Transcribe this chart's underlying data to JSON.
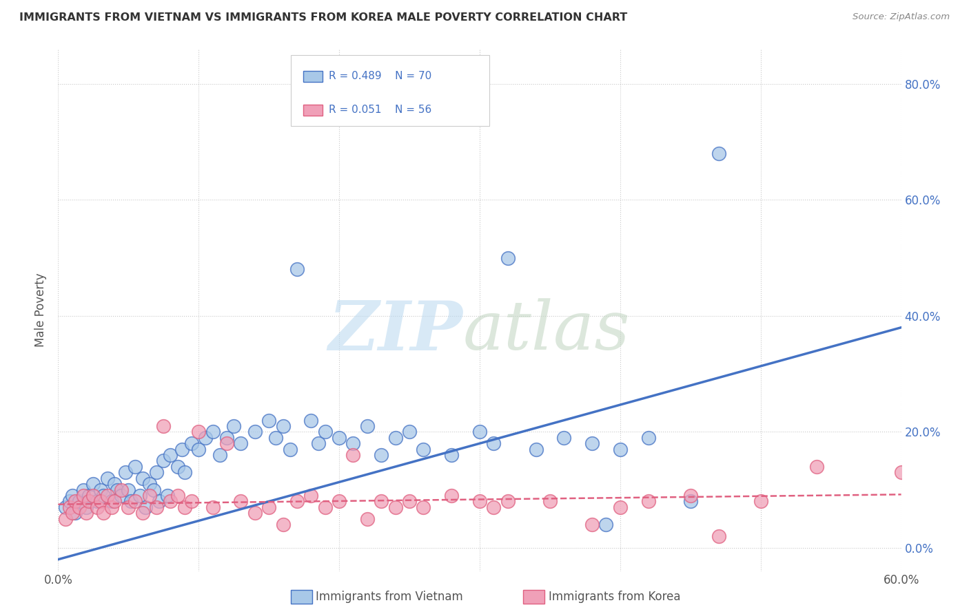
{
  "title": "IMMIGRANTS FROM VIETNAM VS IMMIGRANTS FROM KOREA MALE POVERTY CORRELATION CHART",
  "source": "Source: ZipAtlas.com",
  "ylabel": "Male Poverty",
  "xmin": 0.0,
  "xmax": 0.6,
  "ymin": -0.04,
  "ymax": 0.86,
  "ytick_values": [
    0.0,
    0.2,
    0.4,
    0.6,
    0.8
  ],
  "xtick_values": [
    0.0,
    0.1,
    0.2,
    0.3,
    0.4,
    0.5,
    0.6
  ],
  "legend_label1": "Immigrants from Vietnam",
  "legend_label2": "Immigrants from Korea",
  "legend_R1": "R = 0.489",
  "legend_N1": "N = 70",
  "legend_R2": "R = 0.051",
  "legend_N2": "N = 56",
  "color_vietnam": "#A8C8E8",
  "color_korea": "#F0A0B8",
  "color_line_vietnam": "#4472C4",
  "color_line_korea": "#E06080",
  "vietnam_x": [
    0.005,
    0.008,
    0.01,
    0.012,
    0.015,
    0.018,
    0.02,
    0.022,
    0.025,
    0.028,
    0.03,
    0.032,
    0.035,
    0.038,
    0.04,
    0.042,
    0.045,
    0.048,
    0.05,
    0.052,
    0.055,
    0.058,
    0.06,
    0.062,
    0.065,
    0.068,
    0.07,
    0.072,
    0.075,
    0.078,
    0.08,
    0.085,
    0.088,
    0.09,
    0.095,
    0.1,
    0.105,
    0.11,
    0.115,
    0.12,
    0.125,
    0.13,
    0.14,
    0.15,
    0.155,
    0.16,
    0.165,
    0.17,
    0.18,
    0.185,
    0.19,
    0.2,
    0.21,
    0.22,
    0.23,
    0.24,
    0.25,
    0.26,
    0.28,
    0.3,
    0.31,
    0.32,
    0.34,
    0.36,
    0.38,
    0.39,
    0.4,
    0.42,
    0.45,
    0.47
  ],
  "vietnam_y": [
    0.07,
    0.08,
    0.09,
    0.06,
    0.08,
    0.1,
    0.07,
    0.09,
    0.11,
    0.08,
    0.1,
    0.09,
    0.12,
    0.08,
    0.11,
    0.1,
    0.09,
    0.13,
    0.1,
    0.08,
    0.14,
    0.09,
    0.12,
    0.07,
    0.11,
    0.1,
    0.13,
    0.08,
    0.15,
    0.09,
    0.16,
    0.14,
    0.17,
    0.13,
    0.18,
    0.17,
    0.19,
    0.2,
    0.16,
    0.19,
    0.21,
    0.18,
    0.2,
    0.22,
    0.19,
    0.21,
    0.17,
    0.48,
    0.22,
    0.18,
    0.2,
    0.19,
    0.18,
    0.21,
    0.16,
    0.19,
    0.2,
    0.17,
    0.16,
    0.2,
    0.18,
    0.5,
    0.17,
    0.19,
    0.18,
    0.04,
    0.17,
    0.19,
    0.08,
    0.68
  ],
  "korea_x": [
    0.005,
    0.008,
    0.01,
    0.012,
    0.015,
    0.018,
    0.02,
    0.022,
    0.025,
    0.028,
    0.03,
    0.032,
    0.035,
    0.038,
    0.04,
    0.045,
    0.05,
    0.055,
    0.06,
    0.065,
    0.07,
    0.075,
    0.08,
    0.085,
    0.09,
    0.095,
    0.1,
    0.11,
    0.12,
    0.13,
    0.14,
    0.15,
    0.16,
    0.17,
    0.18,
    0.19,
    0.2,
    0.21,
    0.22,
    0.23,
    0.24,
    0.25,
    0.26,
    0.28,
    0.3,
    0.31,
    0.32,
    0.35,
    0.38,
    0.4,
    0.42,
    0.45,
    0.47,
    0.5,
    0.54,
    0.6
  ],
  "korea_y": [
    0.05,
    0.07,
    0.06,
    0.08,
    0.07,
    0.09,
    0.06,
    0.08,
    0.09,
    0.07,
    0.08,
    0.06,
    0.09,
    0.07,
    0.08,
    0.1,
    0.07,
    0.08,
    0.06,
    0.09,
    0.07,
    0.21,
    0.08,
    0.09,
    0.07,
    0.08,
    0.2,
    0.07,
    0.18,
    0.08,
    0.06,
    0.07,
    0.04,
    0.08,
    0.09,
    0.07,
    0.08,
    0.16,
    0.05,
    0.08,
    0.07,
    0.08,
    0.07,
    0.09,
    0.08,
    0.07,
    0.08,
    0.08,
    0.04,
    0.07,
    0.08,
    0.09,
    0.02,
    0.08,
    0.14,
    0.13
  ],
  "viet_line_x0": 0.0,
  "viet_line_y0": -0.02,
  "viet_line_x1": 0.6,
  "viet_line_y1": 0.38,
  "korea_line_x0": 0.0,
  "korea_line_y0": 0.075,
  "korea_line_x1": 0.6,
  "korea_line_y1": 0.092
}
